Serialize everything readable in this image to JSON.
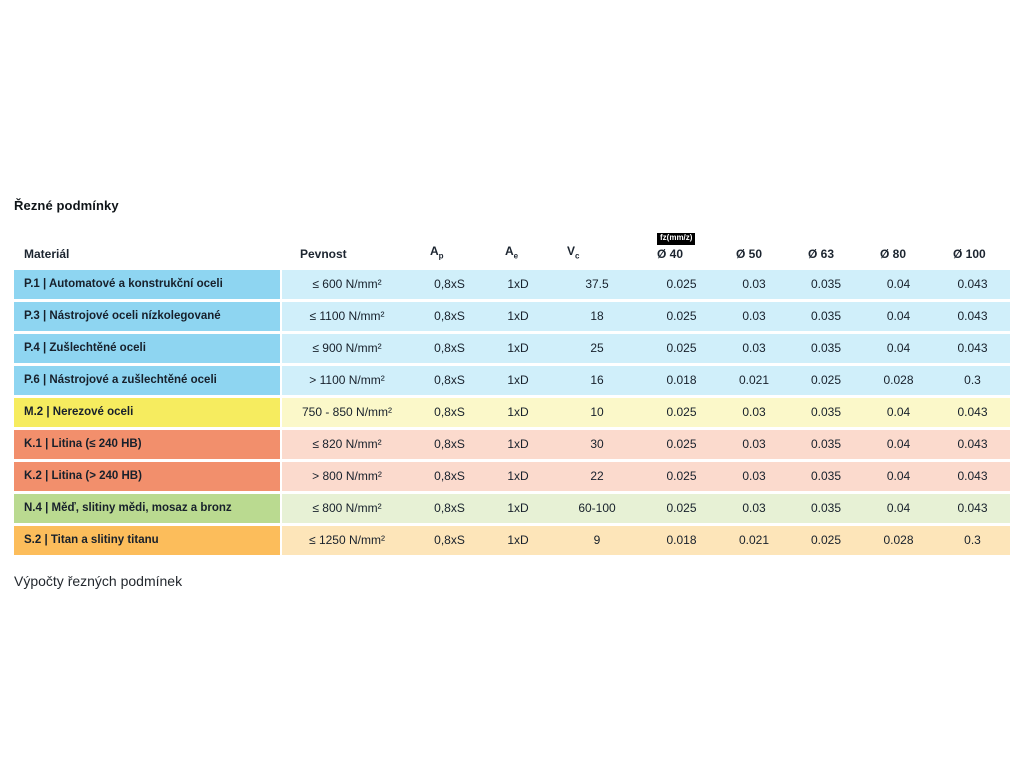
{
  "title": "Řezné podmínky",
  "footer": "Výpočty řezných podmínek",
  "colors": {
    "blue": {
      "dark": "#8ed5f1",
      "light": "#d0effa"
    },
    "yellow": {
      "dark": "#f6ec5f",
      "light": "#fbf8c9"
    },
    "salmon": {
      "dark": "#f28f6c",
      "light": "#fbdacd"
    },
    "green": {
      "dark": "#bada90",
      "light": "#e7f1d5"
    },
    "amber": {
      "dark": "#fcbd5b",
      "light": "#fde5b9"
    },
    "badge_bg": "#000000",
    "badge_text": "#ffffff"
  },
  "chart_data": {
    "type": "table",
    "title": "Řezné podmínky",
    "headers": {
      "material": "Materiál",
      "pevnost": "Pevnost",
      "ap": {
        "base": "A",
        "sub": "p"
      },
      "ae": {
        "base": "A",
        "sub": "e"
      },
      "vc": {
        "base": "V",
        "sub": "c"
      },
      "fz_label": "fz(mm/z)",
      "diameters": [
        "Ø 40",
        "Ø 50",
        "Ø 63",
        "Ø 80",
        "Ø 100"
      ]
    },
    "rows": [
      {
        "group": "blue",
        "material": "P.1 | Automatové a konstrukční oceli",
        "pevnost": "≤ 600 N/mm²",
        "ap": "0,8xS",
        "ae": "1xD",
        "vc": "37.5",
        "fz": [
          "0.025",
          "0.03",
          "0.035",
          "0.04",
          "0.043"
        ]
      },
      {
        "group": "blue",
        "material": "P.3 | Nástrojové oceli nízkolegované",
        "pevnost": "≤ 1100 N/mm²",
        "ap": "0,8xS",
        "ae": "1xD",
        "vc": "18",
        "fz": [
          "0.025",
          "0.03",
          "0.035",
          "0.04",
          "0.043"
        ]
      },
      {
        "group": "blue",
        "material": "P.4 | Zušlechtěné oceli",
        "pevnost": "≤ 900 N/mm²",
        "ap": "0,8xS",
        "ae": "1xD",
        "vc": "25",
        "fz": [
          "0.025",
          "0.03",
          "0.035",
          "0.04",
          "0.043"
        ]
      },
      {
        "group": "blue",
        "material": "P.6 | Nástrojové a zušlechtěné oceli",
        "pevnost": "> 1100 N/mm²",
        "ap": "0,8xS",
        "ae": "1xD",
        "vc": "16",
        "fz": [
          "0.018",
          "0.021",
          "0.025",
          "0.028",
          "0.3"
        ]
      },
      {
        "group": "yellow",
        "material": "M.2 | Nerezové oceli",
        "pevnost": "750 - 850 N/mm²",
        "ap": "0,8xS",
        "ae": "1xD",
        "vc": "10",
        "fz": [
          "0.025",
          "0.03",
          "0.035",
          "0.04",
          "0.043"
        ]
      },
      {
        "group": "salmon",
        "material": "K.1 | Litina (≤ 240 HB)",
        "pevnost": "≤ 820 N/mm²",
        "ap": "0,8xS",
        "ae": "1xD",
        "vc": "30",
        "fz": [
          "0.025",
          "0.03",
          "0.035",
          "0.04",
          "0.043"
        ]
      },
      {
        "group": "salmon",
        "material": "K.2 | Litina (> 240 HB)",
        "pevnost": "> 800 N/mm²",
        "ap": "0,8xS",
        "ae": "1xD",
        "vc": "22",
        "fz": [
          "0.025",
          "0.03",
          "0.035",
          "0.04",
          "0.043"
        ]
      },
      {
        "group": "green",
        "material": "N.4 | Měď, slitiny mědi, mosaz a bronz",
        "pevnost": "≤ 800 N/mm²",
        "ap": "0,8xS",
        "ae": "1xD",
        "vc": "60-100",
        "fz": [
          "0.025",
          "0.03",
          "0.035",
          "0.04",
          "0.043"
        ]
      },
      {
        "group": "amber",
        "material": "S.2 | Titan a slitiny titanu",
        "pevnost": "≤ 1250 N/mm²",
        "ap": "0,8xS",
        "ae": "1xD",
        "vc": "9",
        "fz": [
          "0.018",
          "0.021",
          "0.025",
          "0.028",
          "0.3"
        ]
      }
    ]
  }
}
